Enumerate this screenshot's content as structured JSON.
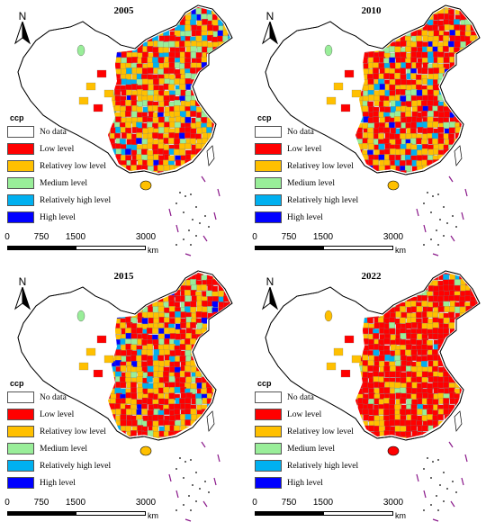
{
  "legend": {
    "title": "ccp",
    "items": [
      {
        "label": "No data",
        "color": "#ffffff"
      },
      {
        "label": "Low level",
        "color": "#ff0000"
      },
      {
        "label": "Relativey low level",
        "color": "#ffc000"
      },
      {
        "label": "Medium level",
        "color": "#99ee99"
      },
      {
        "label": "Relatively high level",
        "color": "#00b0f0"
      },
      {
        "label": "High level",
        "color": "#0000ff"
      }
    ]
  },
  "north_label": "N",
  "scale": {
    "ticks": [
      "0",
      "750",
      "1500",
      "3000"
    ],
    "unit": "km"
  },
  "panels": [
    {
      "year": "2005",
      "mix": [
        0.4,
        0.38,
        0.1,
        0.08,
        0.04
      ]
    },
    {
      "year": "2010",
      "mix": [
        0.48,
        0.36,
        0.08,
        0.04,
        0.04
      ]
    },
    {
      "year": "2015",
      "mix": [
        0.46,
        0.34,
        0.08,
        0.08,
        0.04
      ]
    },
    {
      "year": "2022",
      "mix": [
        0.7,
        0.24,
        0.04,
        0.02,
        0.0
      ]
    }
  ]
}
